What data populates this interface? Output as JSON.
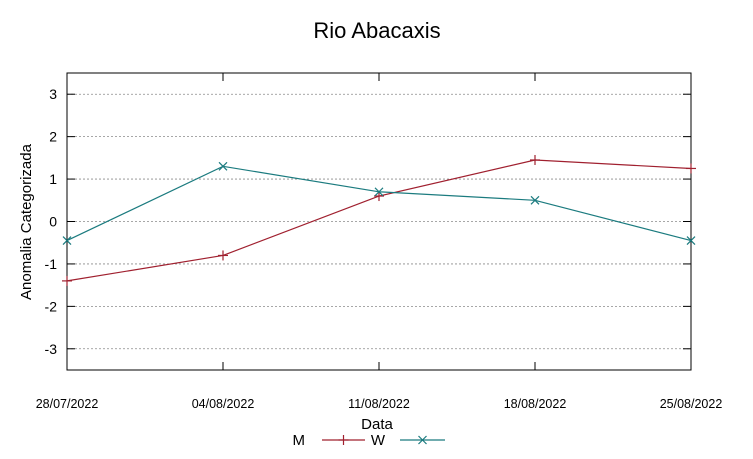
{
  "chart_data": {
    "type": "line",
    "title": "Rio Abacaxis",
    "xlabel": "Data",
    "ylabel": "Anomalia Categorizada",
    "categories": [
      "28/07/2022",
      "04/08/2022",
      "11/08/2022",
      "18/08/2022",
      "25/08/2022"
    ],
    "ylim": [
      -3.5,
      3.5
    ],
    "yticks": [
      -3,
      -2,
      -1,
      0,
      1,
      2,
      3
    ],
    "grid": true,
    "legend_position": "bottom",
    "series": [
      {
        "name": "M",
        "color": "#a0202f",
        "marker": "plus",
        "values": [
          -1.4,
          -0.8,
          0.6,
          1.45,
          1.25
        ]
      },
      {
        "name": "W",
        "color": "#1b7b7f",
        "marker": "x",
        "values": [
          -0.45,
          1.3,
          0.7,
          0.5,
          -0.45
        ]
      }
    ]
  }
}
